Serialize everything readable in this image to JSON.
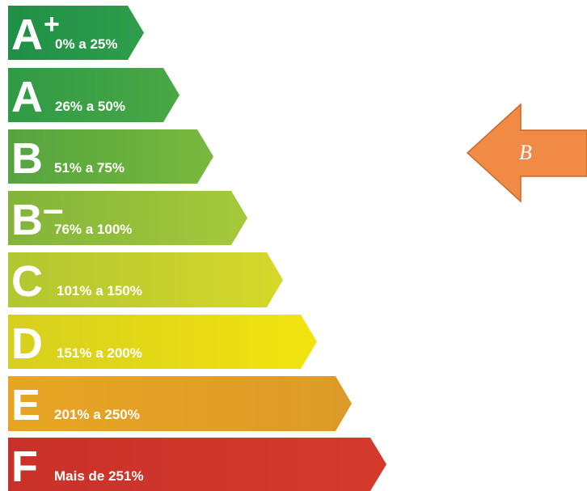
{
  "rating_scale": {
    "classes": [
      {
        "letter": "A",
        "superscript": "+",
        "range": "0% a 25%",
        "colors": [
          "#1f8f47",
          "#2e9e4c"
        ]
      },
      {
        "letter": "A",
        "superscript": "",
        "range": "26% a 50%",
        "colors": [
          "#2f9a45",
          "#4aa845"
        ]
      },
      {
        "letter": "B",
        "superscript": "",
        "range": "51% a 75%",
        "colors": [
          "#54a43f",
          "#79b83d"
        ]
      },
      {
        "letter": "B",
        "superscript": "-",
        "range": "76% a 100%",
        "colors": [
          "#82b43b",
          "#a6c93a"
        ]
      },
      {
        "letter": "C",
        "superscript": "",
        "range": "101% a 150%",
        "colors": [
          "#b1c631",
          "#d6d82a"
        ]
      },
      {
        "letter": "D",
        "superscript": "",
        "range": "151% a 200%",
        "colors": [
          "#d7cf1e",
          "#f1e40f"
        ]
      },
      {
        "letter": "E",
        "superscript": "",
        "range": "201% a 250%",
        "colors": [
          "#e8a524",
          "#dc9a28"
        ]
      },
      {
        "letter": "F",
        "superscript": "",
        "range": "Mais de 251%",
        "colors": [
          "#c9312a",
          "#d43a2c"
        ]
      }
    ]
  },
  "indicator": {
    "label": "B",
    "fill": "#f08a45",
    "stroke": "#c8692d",
    "points_to": "B"
  }
}
